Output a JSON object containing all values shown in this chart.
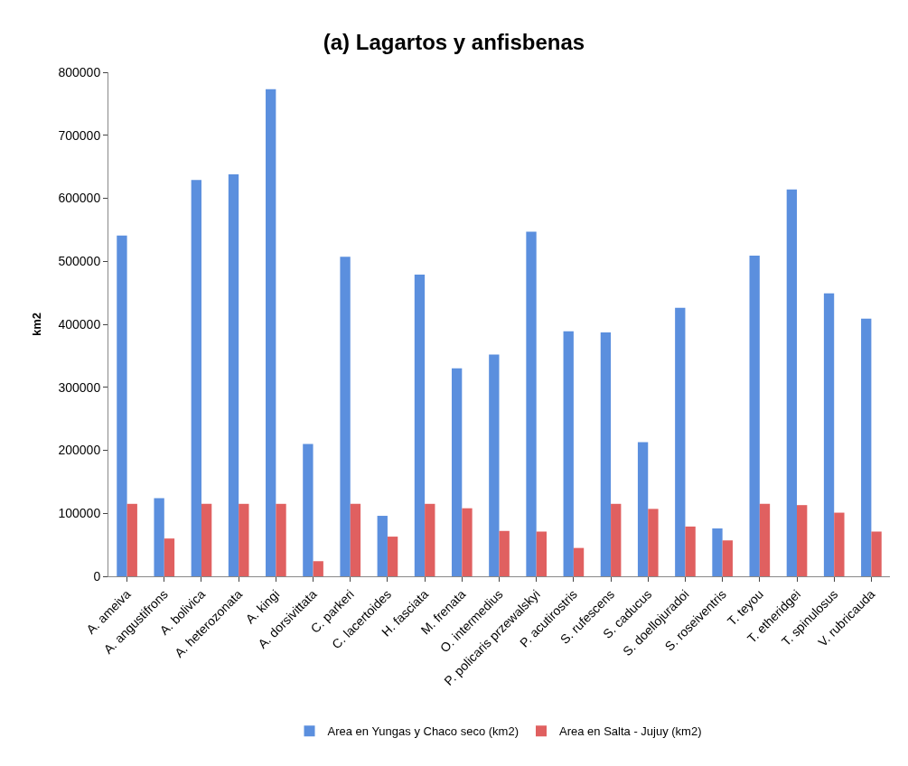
{
  "chart_data": {
    "type": "bar",
    "title": "(a) Lagartos y anfisbenas",
    "ylabel": "km2",
    "categories": [
      "A. ameiva",
      "A. angustifrons",
      "A. bolivica",
      "A. heterozonata",
      "A. kingi",
      "A. dorsivittata",
      "C. parkeri",
      "C. lacertoides",
      "H. fasciata",
      "M. frenata",
      "O. intermedius",
      "P. policaris przewalskyi",
      "P. acutirostris",
      "S. rufescens",
      "S. caducus",
      "S. doellojuradoi",
      "S. roseiventris",
      "T. teyou",
      "T. etheridgei",
      "T. spinulosus",
      "V. rubricauda"
    ],
    "series": [
      {
        "name": "Area en Yungas y Chaco seco (km2)",
        "color": "#5b8fde",
        "values": [
          541000,
          124000,
          629000,
          638000,
          773000,
          210000,
          507000,
          96000,
          479000,
          330000,
          352000,
          547000,
          389000,
          387000,
          213000,
          426000,
          76000,
          509000,
          614000,
          449000,
          409000
        ]
      },
      {
        "name": "Area en Salta - Jujuy (km2)",
        "color": "#e06060",
        "values": [
          115000,
          60000,
          115000,
          115000,
          115000,
          24000,
          115000,
          63000,
          115000,
          108000,
          72000,
          71000,
          45000,
          115000,
          107000,
          79000,
          57000,
          115000,
          113000,
          101000,
          71000
        ]
      }
    ],
    "ylim": [
      0,
      800000
    ],
    "yticks": [
      0,
      100000,
      200000,
      300000,
      400000,
      500000,
      600000,
      700000,
      800000
    ],
    "legend": "bottom"
  }
}
